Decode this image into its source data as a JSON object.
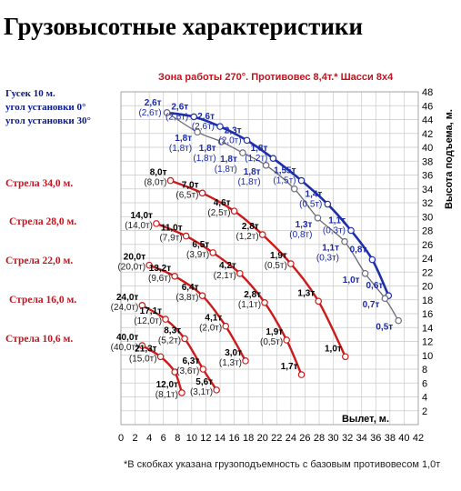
{
  "title": "Грузовысотные характеристики",
  "subtitle": "Зона работы 270°.   Противовес 8,4т.*   Шасси 8х4",
  "footnote": "*В скобках указана грузоподъемность с базовым противовесом 1,0т",
  "colors": {
    "boom": "#cc1a1a",
    "jib0": "#1f2fa8",
    "jib30": "#6b6b7a",
    "label_red": "#c0141e",
    "label_blue": "#0a1a8c"
  },
  "jib_legend": [
    "Гусек 10 м.",
    "угол установки 0°",
    "угол установки 30°"
  ],
  "chart_data": {
    "type": "line",
    "xlabel": "Вылет, м.",
    "ylabel": "Высота подъема, м.",
    "xlim": [
      0,
      42
    ],
    "ylim": [
      0,
      48
    ],
    "x_ticks": [
      "2",
      "4",
      "6",
      "8",
      "10",
      "12",
      "14",
      "16",
      "18",
      "20",
      "22",
      "24",
      "26",
      "28",
      "30",
      "32",
      "34",
      "36",
      "38",
      "40",
      "42"
    ],
    "x_zero": "0",
    "y_ticks": [
      "2",
      "4",
      "6",
      "8",
      "10",
      "12",
      "14",
      "16",
      "18",
      "20",
      "22",
      "24",
      "26",
      "28",
      "30",
      "32",
      "34",
      "36",
      "38",
      "40",
      "42",
      "44",
      "46",
      "48"
    ],
    "series": [
      {
        "name": "Стрела 34,0 м.",
        "color": "#cc1a1a",
        "points": [
          {
            "x": 7.0,
            "y": 35.2,
            "load": "8,0т",
            "base": "(8,0т)"
          },
          {
            "x": 11.5,
            "y": 33.4,
            "load": "7,0т",
            "base": "(6,5т)"
          },
          {
            "x": 16.0,
            "y": 30.8,
            "load": "4,6т",
            "base": "(2,5т)"
          },
          {
            "x": 20.0,
            "y": 27.4,
            "load": "2,8т",
            "base": "(1,2т)"
          },
          {
            "x": 24.0,
            "y": 23.2,
            "load": "1,9т",
            "base": "(0,5т)"
          },
          {
            "x": 27.9,
            "y": 17.8,
            "load": "1,3т",
            "base": ""
          },
          {
            "x": 31.7,
            "y": 9.8,
            "load": "1,0т",
            "base": ""
          }
        ]
      },
      {
        "name": "Стрела 28,0 м.",
        "color": "#cc1a1a",
        "points": [
          {
            "x": 5.0,
            "y": 29.0,
            "load": "14,0т",
            "base": "(14,0т)"
          },
          {
            "x": 9.2,
            "y": 27.2,
            "load": "11,0т",
            "base": "(7,9т)"
          },
          {
            "x": 13.0,
            "y": 24.8,
            "load": "6,5т",
            "base": "(3,9т)"
          },
          {
            "x": 16.8,
            "y": 21.8,
            "load": "4,2т",
            "base": "(2,1т)"
          },
          {
            "x": 20.3,
            "y": 17.6,
            "load": "2,8т",
            "base": "(1,1т)"
          },
          {
            "x": 23.4,
            "y": 12.2,
            "load": "1,9т",
            "base": "(0,5т)"
          },
          {
            "x": 25.5,
            "y": 7.2,
            "load": "1,7т",
            "base": ""
          }
        ]
      },
      {
        "name": "Стрела 22,0 м.",
        "color": "#cc1a1a",
        "points": [
          {
            "x": 4.0,
            "y": 23.0,
            "load": "20,0т",
            "base": "(20,0т)"
          },
          {
            "x": 7.6,
            "y": 21.4,
            "load": "13,2т",
            "base": "(9,6т)"
          },
          {
            "x": 11.5,
            "y": 18.6,
            "load": "6,4т",
            "base": "(3,8т)"
          },
          {
            "x": 14.8,
            "y": 14.2,
            "load": "4,1т",
            "base": "(2,0т)"
          },
          {
            "x": 17.6,
            "y": 9.2,
            "load": "3,0т",
            "base": "(1,3т)"
          }
        ]
      },
      {
        "name": "Стрела 16,0 м.",
        "color": "#cc1a1a",
        "points": [
          {
            "x": 3.0,
            "y": 17.2,
            "load": "24,0т",
            "base": "(24,0т)"
          },
          {
            "x": 6.3,
            "y": 15.2,
            "load": "17,1т",
            "base": "(12,0т)"
          },
          {
            "x": 9.0,
            "y": 12.4,
            "load": "8,3т",
            "base": "(5,2т)"
          },
          {
            "x": 11.6,
            "y": 8.0,
            "load": "6,3т",
            "base": "(3,6т)"
          },
          {
            "x": 13.5,
            "y": 5.0,
            "load": "5,6т",
            "base": "(3,1т)"
          }
        ]
      },
      {
        "name": "Стрела 10,6 м.",
        "color": "#cc1a1a",
        "points": [
          {
            "x": 3.0,
            "y": 11.4,
            "load": "40,0т",
            "base": "(40,0т)"
          },
          {
            "x": 5.6,
            "y": 9.8,
            "load": "21,3т",
            "base": "(15,0т)"
          },
          {
            "x": 7.6,
            "y": 7.6,
            "load": "",
            "base": ""
          },
          {
            "x": 8.6,
            "y": 4.6,
            "load": "12,0т",
            "base": "(8,1т)"
          }
        ]
      },
      {
        "name": "Гусек 10 м. угол установки 0°",
        "color": "#1f2fa8",
        "points": [
          {
            "x": 6.5,
            "y": 45.0,
            "load": "2,6т",
            "base": "(2,6т)"
          },
          {
            "x": 10.3,
            "y": 44.4,
            "load": "2,6т",
            "base": "(2,6т)"
          },
          {
            "x": 14.0,
            "y": 43.0,
            "load": "2,6т",
            "base": "(2,6т)"
          },
          {
            "x": 17.8,
            "y": 41.0,
            "load": "2,3т",
            "base": "(2,0т)"
          },
          {
            "x": 21.5,
            "y": 38.4,
            "load": "1,8т",
            "base": "(1,2т)"
          },
          {
            "x": 25.5,
            "y": 35.2,
            "load": "1,55т",
            "base": "(1,5т)"
          },
          {
            "x": 29.2,
            "y": 31.8,
            "load": "1,4т",
            "base": "(0,5т)"
          },
          {
            "x": 32.5,
            "y": 28.0,
            "load": "1,1т",
            "base": "(0,3т)"
          },
          {
            "x": 35.5,
            "y": 23.8,
            "load": "0,8т",
            "base": ""
          },
          {
            "x": 37.8,
            "y": 18.6,
            "load": "0,6т",
            "base": ""
          }
        ]
      },
      {
        "name": "Гусек 10 м. угол установки 30°",
        "color": "#6b6b7a",
        "points": [
          {
            "x": 6.5,
            "y": 45.0,
            "load": "",
            "base": ""
          },
          {
            "x": 10.8,
            "y": 42.2,
            "load": "1,8т",
            "base": "(1,8т)"
          },
          {
            "x": 14.2,
            "y": 40.8,
            "load": "1,8т",
            "base": "(1,8т)"
          },
          {
            "x": 17.2,
            "y": 39.2,
            "load": "1,8т",
            "base": "(1,8т)"
          },
          {
            "x": 20.5,
            "y": 37.4,
            "load": "1,8т",
            "base": "(1,8т)"
          },
          {
            "x": 24.5,
            "y": 34.0,
            "load": "",
            "base": ""
          },
          {
            "x": 27.8,
            "y": 29.8,
            "load": "1,3т",
            "base": "(0,8т)"
          },
          {
            "x": 31.6,
            "y": 26.4,
            "load": "1,1т",
            "base": "(0,3т)"
          },
          {
            "x": 34.5,
            "y": 21.8,
            "load": "1,0т",
            "base": ""
          },
          {
            "x": 37.3,
            "y": 18.2,
            "load": "0,7т",
            "base": ""
          },
          {
            "x": 39.2,
            "y": 15.0,
            "load": "0,5т",
            "base": ""
          }
        ]
      }
    ]
  }
}
